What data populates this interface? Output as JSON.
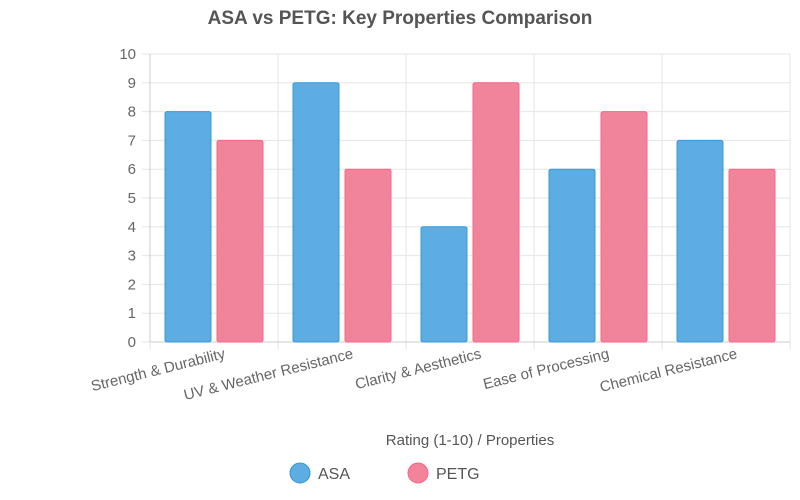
{
  "chart_data": {
    "type": "bar",
    "title": "ASA vs PETG: Key Properties Comparison",
    "xlabel": "Rating (1-10) / Properties",
    "ylabel": "",
    "categories": [
      "Strength & Durability",
      "UV & Weather Resistance",
      "Clarity & Aesthetics",
      "Ease of Processing",
      "Chemical Resistance"
    ],
    "series": [
      {
        "name": "ASA",
        "values": [
          8,
          9,
          4,
          6,
          7
        ],
        "color": "#5DADE2",
        "border_color": "#3498DB"
      },
      {
        "name": "PETG",
        "values": [
          7,
          6,
          9,
          8,
          6
        ],
        "color": "#F1849B",
        "border_color": "#FF6384"
      }
    ],
    "ylim": [
      0,
      10
    ],
    "yticks": [
      "0",
      "1",
      "2",
      "3",
      "4",
      "5",
      "6",
      "7",
      "8",
      "9",
      "10"
    ],
    "grid": true,
    "legend_position": "bottom"
  }
}
